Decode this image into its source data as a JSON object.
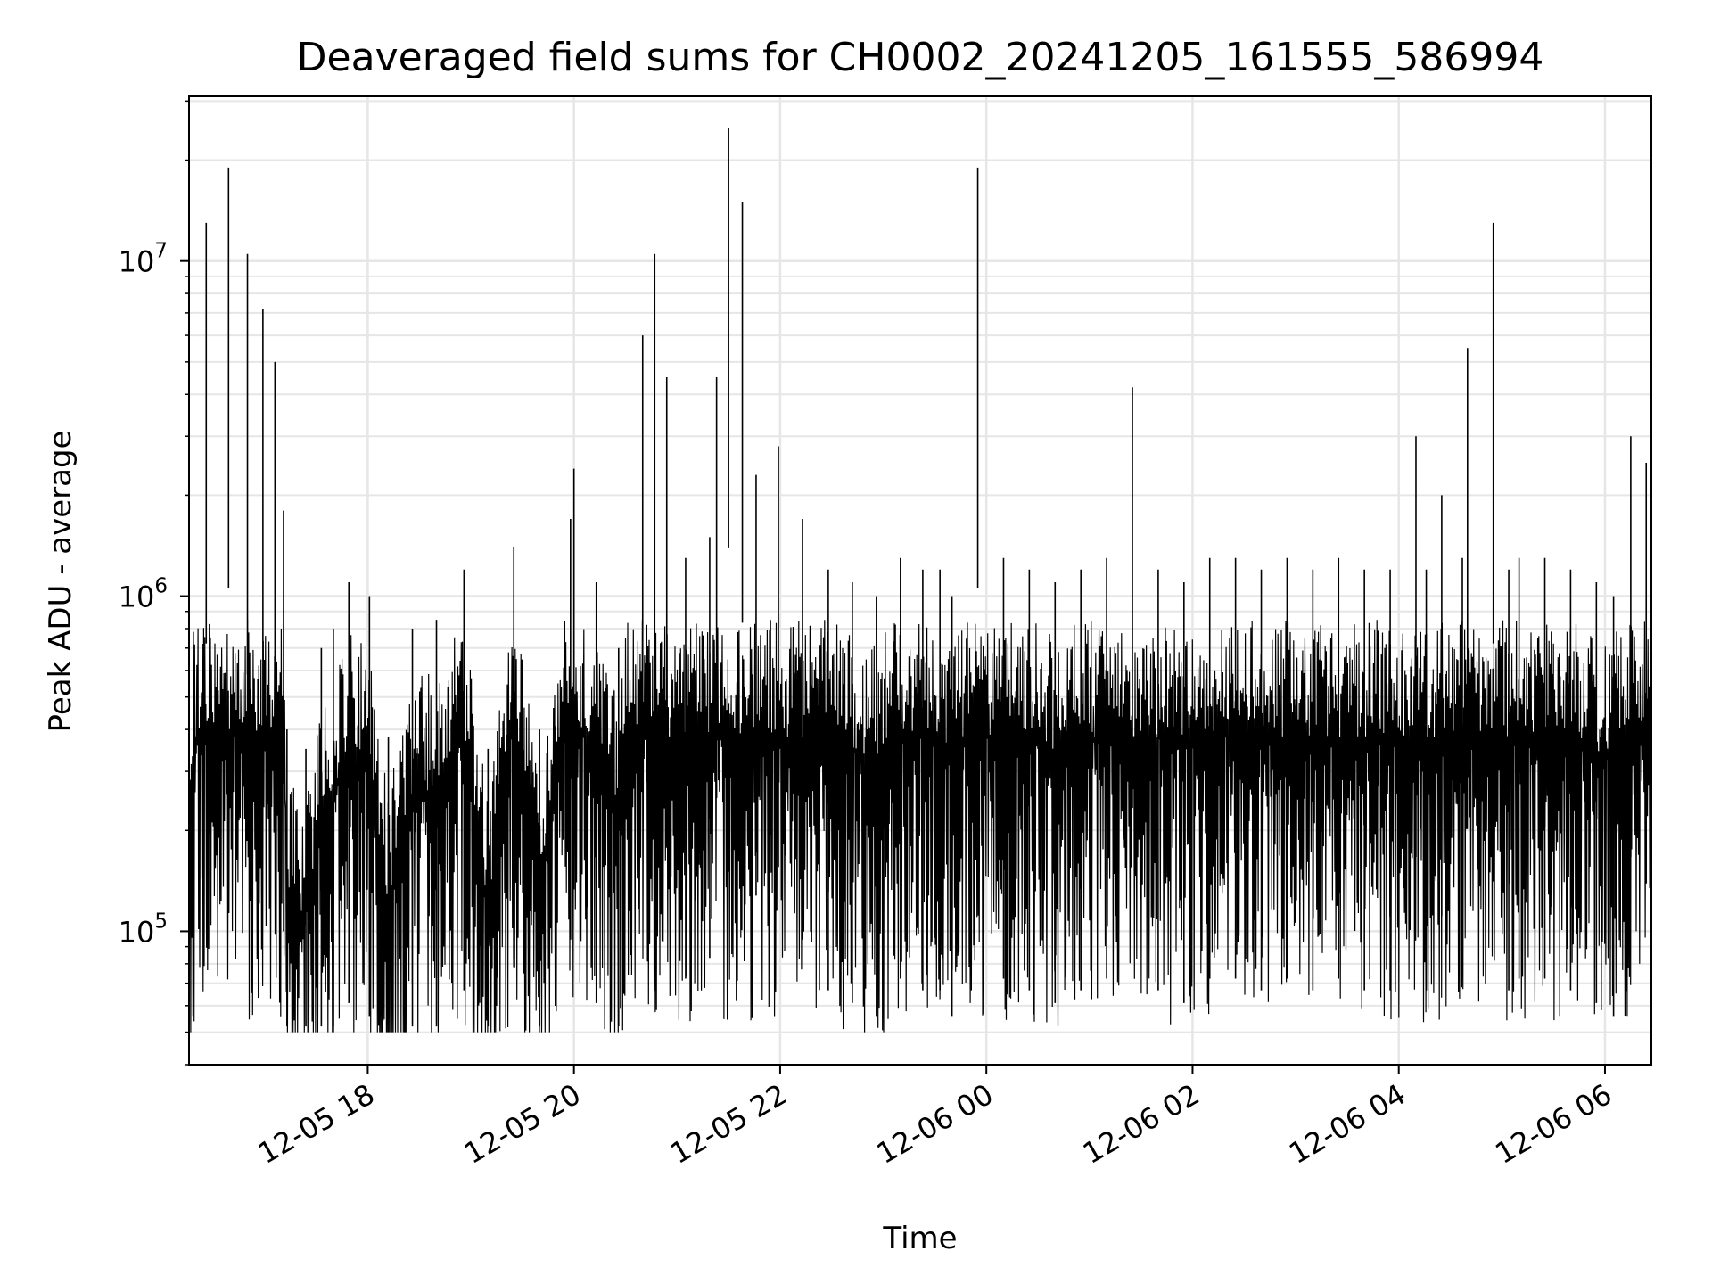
{
  "chart_data": {
    "type": "line",
    "title": "Deaveraged field sums for CH0002_20241205_161555_586994",
    "xlabel": "Time",
    "ylabel": "Peak ADU - average",
    "x_scale": "time",
    "y_scale": "log",
    "xlim": [
      "2024-12-05 16:16",
      "2024-12-06 06:27"
    ],
    "ylim": [
      40000,
      31000000
    ],
    "x_ticks": [
      "2024-12-05 18:00",
      "2024-12-05 20:00",
      "2024-12-05 22:00",
      "2024-12-06 00:00",
      "2024-12-06 02:00",
      "2024-12-06 04:00",
      "2024-12-06 06:00"
    ],
    "x_tick_labels": [
      "12-05 18",
      "12-05 20",
      "12-05 22",
      "12-06 00",
      "12-06 02",
      "12-06 04",
      "12-06 06"
    ],
    "y_ticks": [
      {
        "base": "10",
        "exp": "5",
        "value": 100000
      },
      {
        "base": "10",
        "exp": "6",
        "value": 1000000
      },
      {
        "base": "10",
        "exp": "7",
        "value": 10000000
      }
    ],
    "grid": true,
    "legend": "none",
    "line_color": "#000000",
    "series": [
      {
        "x": [
          "2024-12-05 16:16",
          "2024-12-05 16:26",
          "2024-12-05 16:39",
          "2024-12-05 16:50",
          "2024-12-05 16:59",
          "2024-12-05 17:06",
          "2024-12-05 17:11",
          "2024-12-05 17:13",
          "2024-12-05 17:24",
          "2024-12-05 17:33",
          "2024-12-05 17:40",
          "2024-12-05 17:49",
          "2024-12-05 18:01",
          "2024-12-05 18:12",
          "2024-12-05 18:26",
          "2024-12-05 18:40",
          "2024-12-05 18:56",
          "2024-12-05 19:10",
          "2024-12-05 19:25",
          "2024-12-05 19:40",
          "2024-12-05 19:58",
          "2024-12-05 20:00",
          "2024-12-05 20:13",
          "2024-12-05 20:26",
          "2024-12-05 20:40",
          "2024-12-05 20:47",
          "2024-12-05 20:54",
          "2024-12-05 21:05",
          "2024-12-05 21:19",
          "2024-12-05 21:23",
          "2024-12-05 21:30",
          "2024-12-05 21:38",
          "2024-12-05 21:46",
          "2024-12-05 21:59",
          "2024-12-05 22:13",
          "2024-12-05 22:28",
          "2024-12-05 22:42",
          "2024-12-05 22:56",
          "2024-12-05 23:10",
          "2024-12-05 23:23",
          "2024-12-05 23:33",
          "2024-12-05 23:40",
          "2024-12-05 23:55",
          "2024-12-06 00:10",
          "2024-12-06 00:25",
          "2024-12-06 00:40",
          "2024-12-06 00:55",
          "2024-12-06 01:10",
          "2024-12-06 01:25",
          "2024-12-06 01:40",
          "2024-12-06 01:55",
          "2024-12-06 02:10",
          "2024-12-06 02:25",
          "2024-12-06 02:40",
          "2024-12-06 02:55",
          "2024-12-06 03:10",
          "2024-12-06 03:25",
          "2024-12-06 03:40",
          "2024-12-06 03:55",
          "2024-12-06 04:10",
          "2024-12-06 04:16",
          "2024-12-06 04:25",
          "2024-12-06 04:37",
          "2024-12-06 04:40",
          "2024-12-06 04:55",
          "2024-12-06 05:04",
          "2024-12-06 05:10",
          "2024-12-06 05:25",
          "2024-12-06 05:40",
          "2024-12-06 05:55",
          "2024-12-06 06:05",
          "2024-12-06 06:15",
          "2024-12-06 06:24",
          "2024-12-06 06:27"
        ],
        "y": [
          500000,
          13000000,
          19000000,
          10500000,
          7200000,
          5000000,
          1800000,
          400000,
          350000,
          700000,
          800000,
          1100000,
          1000000,
          380000,
          800000,
          850000,
          1200000,
          350000,
          1400000,
          400000,
          1700000,
          2400000,
          1100000,
          700000,
          6000000,
          10500000,
          4500000,
          1300000,
          1500000,
          4500000,
          25000000,
          15000000,
          2300000,
          2800000,
          1700000,
          1200000,
          1100000,
          1000000,
          1300000,
          1200000,
          1200000,
          1000000,
          19000000,
          1300000,
          1200000,
          1100000,
          1200000,
          1300000,
          4200000,
          1200000,
          1100000,
          1300000,
          1300000,
          1200000,
          1300000,
          1200000,
          1300000,
          1200000,
          1200000,
          3000000,
          1200000,
          2000000,
          1300000,
          5500000,
          13000000,
          1200000,
          1300000,
          1300000,
          1200000,
          1100000,
          1000000,
          3000000,
          2500000,
          550000
        ]
      }
    ]
  }
}
